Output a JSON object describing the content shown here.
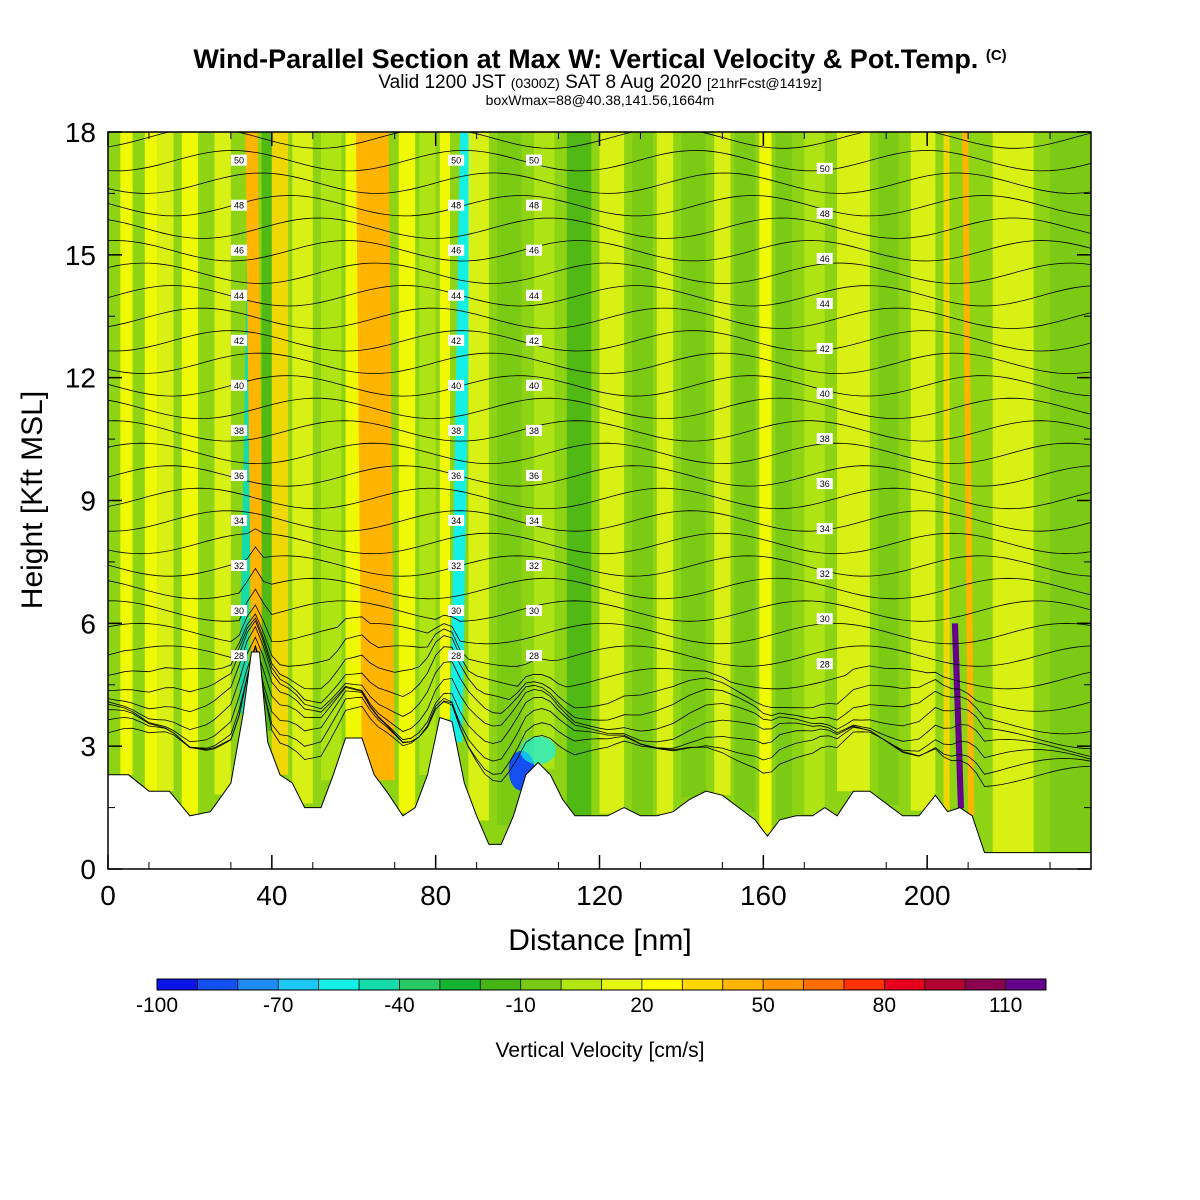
{
  "header": {
    "title": "Wind-Parallel Section at Max W: Vertical Velocity & Pot.Temp.",
    "title_mark": "(C)",
    "valid_pre": "Valid 1200 JST",
    "valid_z": "(0300Z)",
    "valid_date": "SAT 8 Aug 2020",
    "valid_fcst": "[21hrFcst@1419z]",
    "boxinfo": "boxWmax=88@40.38,141.56,1664m"
  },
  "chart_data": {
    "type": "heatmap",
    "xlabel": "Distance [nm]",
    "ylabel": "Height [Kft MSL]",
    "xlim": [
      0,
      240
    ],
    "ylim": [
      0,
      18
    ],
    "xticks": [
      "0",
      "40",
      "80",
      "120",
      "160",
      "200"
    ],
    "yticks": [
      "0",
      "3",
      "6",
      "9",
      "12",
      "15",
      "18"
    ],
    "colorbar": {
      "label": "Vertical Velocity [cm/s]",
      "range": [
        -100,
        130
      ],
      "step": 10,
      "tick_labels": [
        "-100",
        "-70",
        "-40",
        "-10",
        "20",
        "50",
        "80",
        "110"
      ],
      "colors": [
        "#0a14e6",
        "#1450f0",
        "#1e8cf5",
        "#1ec8f5",
        "#14f0e6",
        "#14dcaa",
        "#28c864",
        "#14b432",
        "#46b414",
        "#78c814",
        "#b4e614",
        "#e6f514",
        "#ffff00",
        "#ffd700",
        "#ffb400",
        "#ff9600",
        "#ff6e00",
        "#ff3200",
        "#e6001e",
        "#b40032",
        "#8c0050",
        "#64008c"
      ]
    },
    "theta_contour_labels": [
      "50",
      "48",
      "46",
      "44",
      "42",
      "40",
      "38",
      "36",
      "34",
      "32",
      "30",
      "28"
    ],
    "terrain_kft": [
      [
        0,
        2.3
      ],
      [
        5,
        2.3
      ],
      [
        10,
        1.9
      ],
      [
        15,
        1.9
      ],
      [
        20,
        1.3
      ],
      [
        25,
        1.4
      ],
      [
        30,
        2.1
      ],
      [
        33,
        3.8
      ],
      [
        35,
        5.3
      ],
      [
        37,
        5.3
      ],
      [
        39,
        3.1
      ],
      [
        42,
        2.3
      ],
      [
        45,
        2.1
      ],
      [
        48,
        1.5
      ],
      [
        52,
        1.5
      ],
      [
        55,
        2.3
      ],
      [
        58,
        3.2
      ],
      [
        62,
        3.2
      ],
      [
        65,
        2.3
      ],
      [
        68,
        1.9
      ],
      [
        72,
        1.3
      ],
      [
        75,
        1.5
      ],
      [
        78,
        2.3
      ],
      [
        81,
        3.7
      ],
      [
        84,
        3.6
      ],
      [
        87,
        2.1
      ],
      [
        90,
        1.3
      ],
      [
        93,
        0.6
      ],
      [
        96,
        0.6
      ],
      [
        99,
        1.3
      ],
      [
        102,
        2.3
      ],
      [
        105,
        2.6
      ],
      [
        108,
        2.3
      ],
      [
        111,
        1.7
      ],
      [
        114,
        1.3
      ],
      [
        118,
        1.3
      ],
      [
        122,
        1.3
      ],
      [
        126,
        1.5
      ],
      [
        130,
        1.3
      ],
      [
        134,
        1.3
      ],
      [
        138,
        1.4
      ],
      [
        142,
        1.7
      ],
      [
        146,
        1.9
      ],
      [
        150,
        1.8
      ],
      [
        154,
        1.5
      ],
      [
        158,
        1.2
      ],
      [
        161,
        0.8
      ],
      [
        164,
        1.2
      ],
      [
        168,
        1.3
      ],
      [
        172,
        1.3
      ],
      [
        175,
        1.5
      ],
      [
        178,
        1.3
      ],
      [
        182,
        1.9
      ],
      [
        186,
        1.9
      ],
      [
        190,
        1.6
      ],
      [
        194,
        1.3
      ],
      [
        198,
        1.3
      ],
      [
        202,
        1.8
      ],
      [
        205,
        1.4
      ],
      [
        208,
        1.5
      ],
      [
        211,
        1.3
      ],
      [
        214,
        0.4
      ],
      [
        220,
        0.4
      ],
      [
        240,
        0.4
      ]
    ],
    "velocity_bands_cm_s": [
      {
        "x": 3,
        "w": 3,
        "value": 25
      },
      {
        "x": 9,
        "w": 3,
        "value": 20
      },
      {
        "x": 12,
        "w": 4,
        "value": 15
      },
      {
        "x": 18,
        "w": 4,
        "value": 20
      },
      {
        "x": 26,
        "w": 4,
        "value": 10
      },
      {
        "x": 32,
        "w": 2,
        "value": -45
      },
      {
        "x": 35,
        "w": 3,
        "value": 45
      },
      {
        "x": 37.5,
        "w": 2.5,
        "value": -20
      },
      {
        "x": 40,
        "w": 4,
        "value": 30
      },
      {
        "x": 45,
        "w": 5,
        "value": 10
      },
      {
        "x": 52,
        "w": 5,
        "value": 0
      },
      {
        "x": 58,
        "w": 5,
        "value": 20
      },
      {
        "x": 62,
        "w": 8,
        "value": 45
      },
      {
        "x": 71,
        "w": 4,
        "value": 20
      },
      {
        "x": 76,
        "w": 4,
        "value": 5
      },
      {
        "x": 81,
        "w": 2.5,
        "value": 25
      },
      {
        "x": 83.5,
        "w": 3,
        "value": -55
      },
      {
        "x": 88,
        "w": 5,
        "value": 10
      },
      {
        "x": 95,
        "w": 6,
        "value": -5
      },
      {
        "x": 104,
        "w": 5,
        "value": 5
      },
      {
        "x": 112,
        "w": 6,
        "value": -15
      },
      {
        "x": 120,
        "w": 6,
        "value": 10
      },
      {
        "x": 128,
        "w": 5,
        "value": -10
      },
      {
        "x": 134,
        "w": 4,
        "value": 15
      },
      {
        "x": 140,
        "w": 6,
        "value": -5
      },
      {
        "x": 148,
        "w": 4,
        "value": 10
      },
      {
        "x": 153,
        "w": 5,
        "value": -5
      },
      {
        "x": 159,
        "w": 3,
        "value": 25
      },
      {
        "x": 163,
        "w": 4,
        "value": -10
      },
      {
        "x": 170,
        "w": 5,
        "value": 5
      },
      {
        "x": 178,
        "w": 8,
        "value": 10
      },
      {
        "x": 188,
        "w": 5,
        "value": -5
      },
      {
        "x": 196,
        "w": 6,
        "value": 10
      },
      {
        "x": 204,
        "w": 1.5,
        "value": 30
      },
      {
        "x": 207.5,
        "w": 1.5,
        "value": 110
      },
      {
        "x": 210,
        "w": 1.5,
        "value": 40
      },
      {
        "x": 216,
        "w": 10,
        "value": 10
      },
      {
        "x": 230,
        "w": 10,
        "value": -5
      }
    ],
    "downdraft_core": {
      "x": 101,
      "y": 2.4,
      "value": -90
    }
  }
}
